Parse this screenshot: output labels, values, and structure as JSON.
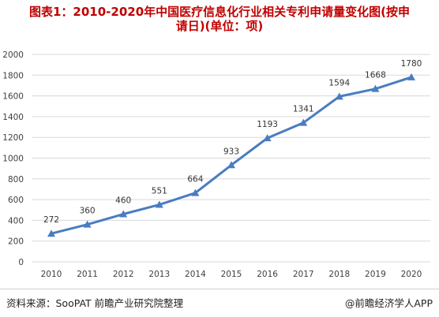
{
  "title": {
    "line1": "图表1：2010-2020年中国医疗信息化行业相关专利申请量变化图(按申",
    "line2": "请日)(单位：项)"
  },
  "footer": {
    "source": "资料来源：SooPAT 前瞻产业研究院整理",
    "brand": "@前瞻经济学人APP"
  },
  "colors": {
    "line": "#4a7cc0",
    "title": "#c00000",
    "grid": "#d9d9d9"
  },
  "chart_data": {
    "type": "line",
    "categories": [
      "2010",
      "2011",
      "2012",
      "2013",
      "2014",
      "2015",
      "2016",
      "2017",
      "2018",
      "2019",
      "2020"
    ],
    "series": [
      {
        "values": [
          272,
          360,
          460,
          551,
          664,
          933,
          1193,
          1341,
          1594,
          1668,
          1780
        ]
      }
    ],
    "ylim": [
      0,
      2000
    ],
    "yticks": [
      0,
      200,
      400,
      600,
      800,
      1000,
      1200,
      1400,
      1600,
      1800,
      2000
    ],
    "grid": true,
    "marker": "triangle",
    "data_labels": true
  }
}
